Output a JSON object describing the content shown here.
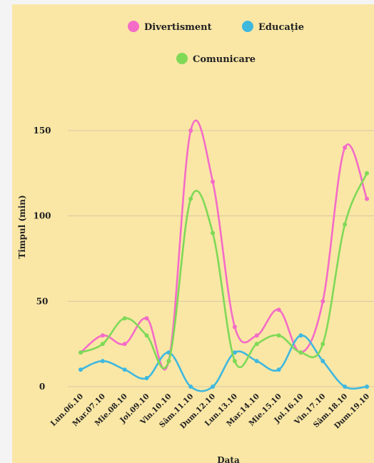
{
  "chart_data": {
    "type": "line",
    "title": "",
    "xlabel": "Data",
    "ylabel": "Timpul (min)",
    "ylim": [
      0,
      150
    ],
    "yticks": [
      0,
      50,
      100,
      150
    ],
    "grid": true,
    "smooth": true,
    "legend_position": "top-center",
    "categories": [
      "Lun.06.10",
      "Mar.07.10",
      "Mie.08.10",
      "Joi.09.10",
      "Vin.10.10",
      "Sâm.11.10",
      "Dum.12.10",
      "Lun.13.10",
      "Mar.14.10",
      "Mie.15.10",
      "Joi.16.10",
      "Vin.17.10",
      "Sâm.18.10",
      "Dum.19.10"
    ],
    "series": [
      {
        "name": "Divertisment",
        "color": "#f46cc7",
        "values": [
          20,
          30,
          25,
          40,
          15,
          150,
          120,
          35,
          30,
          45,
          20,
          50,
          140,
          110
        ]
      },
      {
        "name": "Educație",
        "color": "#3fb8de",
        "values": [
          10,
          15,
          10,
          5,
          20,
          0,
          0,
          20,
          15,
          10,
          30,
          15,
          0,
          0
        ]
      },
      {
        "name": "Comunicare",
        "color": "#7fd957",
        "values": [
          20,
          25,
          40,
          30,
          15,
          110,
          90,
          15,
          25,
          30,
          20,
          25,
          95,
          125
        ]
      }
    ]
  }
}
